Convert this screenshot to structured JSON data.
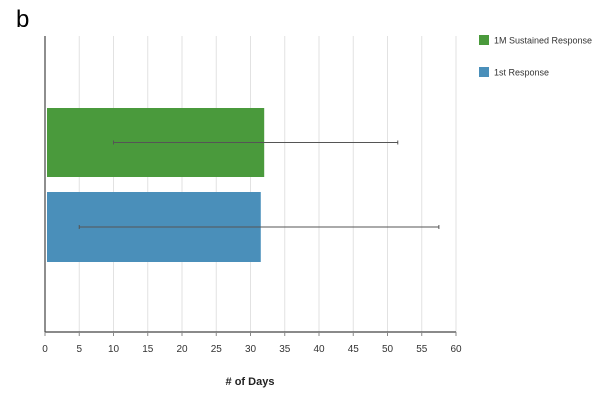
{
  "panel_label": "b",
  "chart_data": {
    "type": "bar",
    "orientation": "horizontal",
    "title": "",
    "xlabel": "# of Days",
    "ylabel": "",
    "xlim": [
      0,
      60
    ],
    "xticks": [
      0,
      5,
      10,
      15,
      20,
      25,
      30,
      35,
      40,
      45,
      50,
      55,
      60
    ],
    "grid": "vertical",
    "legend_position": "top-right",
    "series": [
      {
        "name": "1M Sustained Response",
        "color": "#4a9a3c",
        "value": 32,
        "error_low": 10,
        "error_high": 51.5
      },
      {
        "name": "1st Response",
        "color": "#4a8fba",
        "value": 31.5,
        "error_low": 5,
        "error_high": 57.5
      }
    ]
  }
}
